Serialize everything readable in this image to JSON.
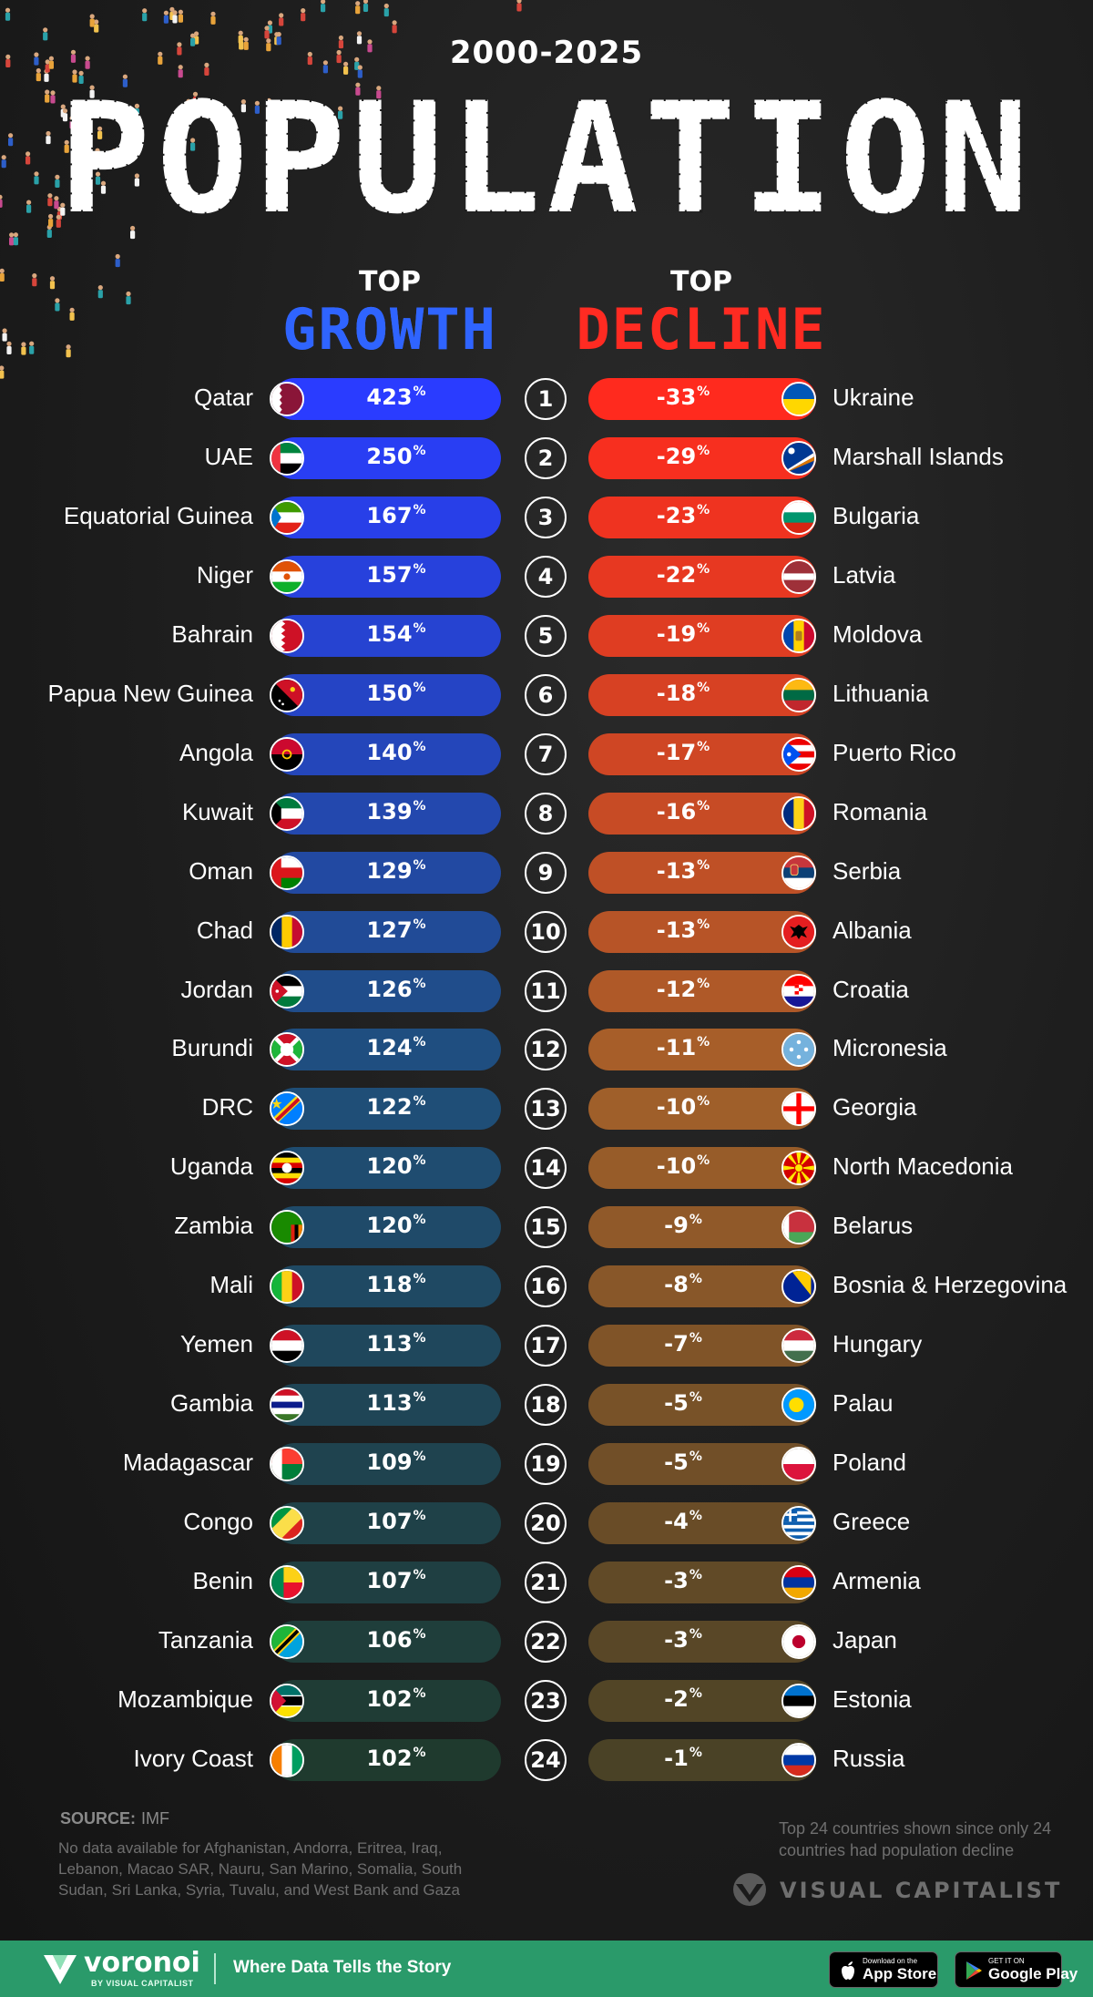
{
  "header": {
    "years": "2000-2025",
    "title": "POPULATION",
    "growth_top": "TOP",
    "growth_label": "GROWTH",
    "decline_top": "TOP",
    "decline_label": "DECLINE"
  },
  "colors": {
    "growth_start": "#2a3cff",
    "growth_end": "#1f3a2e",
    "decline_start": "#ff2a1e",
    "decline_end": "#4a4226",
    "footer": "#2a9a6a"
  },
  "chart_data": {
    "type": "table",
    "pct_suffix": "%",
    "ranks": [
      "1",
      "2",
      "3",
      "4",
      "5",
      "6",
      "7",
      "8",
      "9",
      "10",
      "11",
      "12",
      "13",
      "14",
      "15",
      "16",
      "17",
      "18",
      "19",
      "20",
      "21",
      "22",
      "23",
      "24"
    ],
    "growth": [
      {
        "country": "Qatar",
        "value": 423,
        "flag": "qatar"
      },
      {
        "country": "UAE",
        "value": 250,
        "flag": "uae"
      },
      {
        "country": "Equatorial Guinea",
        "value": 167,
        "flag": "equatorial-guinea"
      },
      {
        "country": "Niger",
        "value": 157,
        "flag": "niger"
      },
      {
        "country": "Bahrain",
        "value": 154,
        "flag": "bahrain"
      },
      {
        "country": "Papua New Guinea",
        "value": 150,
        "flag": "papua-new-guinea"
      },
      {
        "country": "Angola",
        "value": 140,
        "flag": "angola"
      },
      {
        "country": "Kuwait",
        "value": 139,
        "flag": "kuwait"
      },
      {
        "country": "Oman",
        "value": 129,
        "flag": "oman"
      },
      {
        "country": "Chad",
        "value": 127,
        "flag": "chad"
      },
      {
        "country": "Jordan",
        "value": 126,
        "flag": "jordan"
      },
      {
        "country": "Burundi",
        "value": 124,
        "flag": "burundi"
      },
      {
        "country": "DRC",
        "value": 122,
        "flag": "drc"
      },
      {
        "country": "Uganda",
        "value": 120,
        "flag": "uganda"
      },
      {
        "country": "Zambia",
        "value": 120,
        "flag": "zambia"
      },
      {
        "country": "Mali",
        "value": 118,
        "flag": "mali"
      },
      {
        "country": "Yemen",
        "value": 113,
        "flag": "yemen"
      },
      {
        "country": "Gambia",
        "value": 113,
        "flag": "gambia"
      },
      {
        "country": "Madagascar",
        "value": 109,
        "flag": "madagascar"
      },
      {
        "country": "Congo",
        "value": 107,
        "flag": "congo"
      },
      {
        "country": "Benin",
        "value": 107,
        "flag": "benin"
      },
      {
        "country": "Tanzania",
        "value": 106,
        "flag": "tanzania"
      },
      {
        "country": "Mozambique",
        "value": 102,
        "flag": "mozambique"
      },
      {
        "country": "Ivory Coast",
        "value": 102,
        "flag": "ivory-coast"
      }
    ],
    "decline": [
      {
        "country": "Ukraine",
        "value": -33,
        "flag": "ukraine"
      },
      {
        "country": "Marshall Islands",
        "value": -29,
        "flag": "marshall-islands"
      },
      {
        "country": "Bulgaria",
        "value": -23,
        "flag": "bulgaria"
      },
      {
        "country": "Latvia",
        "value": -22,
        "flag": "latvia"
      },
      {
        "country": "Moldova",
        "value": -19,
        "flag": "moldova"
      },
      {
        "country": "Lithuania",
        "value": -18,
        "flag": "lithuania"
      },
      {
        "country": "Puerto Rico",
        "value": -17,
        "flag": "puerto-rico"
      },
      {
        "country": "Romania",
        "value": -16,
        "flag": "romania"
      },
      {
        "country": "Serbia",
        "value": -13,
        "flag": "serbia"
      },
      {
        "country": "Albania",
        "value": -13,
        "flag": "albania"
      },
      {
        "country": "Croatia",
        "value": -12,
        "flag": "croatia"
      },
      {
        "country": "Micronesia",
        "value": -11,
        "flag": "micronesia"
      },
      {
        "country": "Georgia",
        "value": -10,
        "flag": "georgia"
      },
      {
        "country": "North Macedonia",
        "value": -10,
        "flag": "north-macedonia"
      },
      {
        "country": "Belarus",
        "value": -9,
        "flag": "belarus"
      },
      {
        "country": "Bosnia & Herzegovina",
        "value": -8,
        "flag": "bosnia"
      },
      {
        "country": "Hungary",
        "value": -7,
        "flag": "hungary"
      },
      {
        "country": "Palau",
        "value": -5,
        "flag": "palau"
      },
      {
        "country": "Poland",
        "value": -5,
        "flag": "poland"
      },
      {
        "country": "Greece",
        "value": -4,
        "flag": "greece"
      },
      {
        "country": "Armenia",
        "value": -3,
        "flag": "armenia"
      },
      {
        "country": "Japan",
        "value": -3,
        "flag": "japan"
      },
      {
        "country": "Estonia",
        "value": -2,
        "flag": "estonia"
      },
      {
        "country": "Russia",
        "value": -1,
        "flag": "russia"
      }
    ]
  },
  "footnotes": {
    "source_label": "SOURCE:",
    "source_value": "IMF",
    "no_data": "No data available for Afghanistan, Andorra, Eritrea, Iraq, Lebanon, Macao SAR, Nauru, San Marino, Somalia, South Sudan, Sri Lanka, Syria, Tuvalu, and West Bank and Gaza",
    "note": "Top 24 countries shown since only 24 countries had population decline",
    "publisher": "VISUAL CAPITALIST"
  },
  "footer": {
    "brand": "voronoi",
    "brand_sub": "BY VISUAL CAPITALIST",
    "tagline": "Where Data Tells the Story",
    "appstore_small": "Download on the",
    "appstore_big": "App Store",
    "googleplay_small": "GET IT ON",
    "googleplay_big": "Google Play"
  }
}
